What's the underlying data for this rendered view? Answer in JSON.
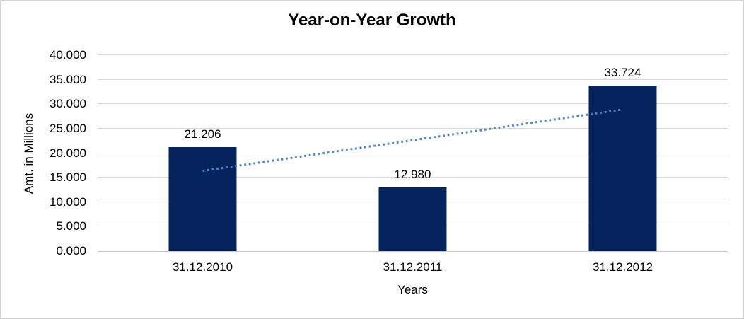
{
  "figure": {
    "background": "#FFFFFF",
    "border_color": "#D2D2D2"
  },
  "chart_data": {
    "type": "bar",
    "title": "Year-on-Year Growth",
    "xlabel": "Years",
    "ylabel": "Amt. in Millions",
    "categories": [
      "31.12.2010",
      "31.12.2011",
      "31.12.2012"
    ],
    "values": [
      21.206,
      12.98,
      33.724
    ],
    "value_labels": [
      "21.206",
      "12.980",
      "33.724"
    ],
    "ylim": [
      0,
      40
    ],
    "ytick_step": 5,
    "ytick_labels": [
      "0.000",
      "5.000",
      "10.000",
      "15.000",
      "20.000",
      "25.000",
      "30.000",
      "35.000",
      "40.000"
    ],
    "grid": true,
    "legend_position": "none",
    "bar_color": "#05245E",
    "gridline_color": "#D9D9D9",
    "axis_line_color": "#C6C6C6",
    "trendline": {
      "type": "linear",
      "style": "dotted",
      "color": "#4A86D0",
      "start_value": 16.38,
      "end_value": 28.9
    }
  }
}
